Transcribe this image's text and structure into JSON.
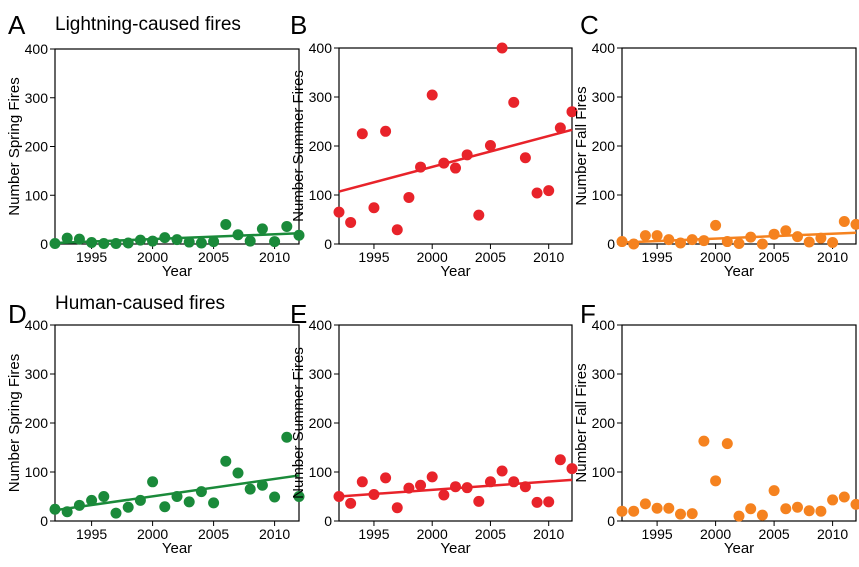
{
  "row_titles": {
    "top": "Lightning-caused fires",
    "bottom": "Human-caused fires"
  },
  "colors": {
    "spring": "#1a8a3a",
    "summer": "#e8232a",
    "fall": "#f5821f",
    "frame": "#000000"
  },
  "chart_data": [
    {
      "panel": "A",
      "type": "scatter",
      "row": "top",
      "xlabel": "Year",
      "ylabel": "Number Spring Fires",
      "xlim": [
        1992,
        2012
      ],
      "ylim": [
        0,
        400
      ],
      "xticks": [
        1995,
        2000,
        2005,
        2010
      ],
      "yticks": [
        0,
        100,
        200,
        300,
        400
      ],
      "grid": false,
      "color_key": "spring",
      "x": [
        1992,
        1993,
        1994,
        1995,
        1996,
        1997,
        1998,
        1999,
        2000,
        2001,
        2002,
        2003,
        2004,
        2005,
        2006,
        2007,
        2008,
        2009,
        2010,
        2011,
        2012
      ],
      "y": [
        1,
        12,
        10,
        3,
        1,
        1,
        2,
        8,
        6,
        13,
        9,
        4,
        2,
        5,
        40,
        19,
        6,
        31,
        5,
        36,
        18
      ],
      "trend": [
        2,
        22
      ]
    },
    {
      "panel": "B",
      "type": "scatter",
      "row": "top",
      "xlabel": "Year",
      "ylabel": "Number Summer Fires",
      "xlim": [
        1992,
        2012
      ],
      "ylim": [
        0,
        400
      ],
      "xticks": [
        1995,
        2000,
        2005,
        2010
      ],
      "yticks": [
        0,
        100,
        200,
        300,
        400
      ],
      "grid": false,
      "color_key": "summer",
      "x": [
        1992,
        1993,
        1994,
        1995,
        1996,
        1997,
        1998,
        1999,
        2000,
        2001,
        2002,
        2003,
        2004,
        2005,
        2006,
        2007,
        2008,
        2009,
        2010,
        2011,
        2012
      ],
      "y": [
        65,
        44,
        225,
        74,
        230,
        29,
        95,
        157,
        304,
        165,
        155,
        182,
        59,
        201,
        400,
        289,
        176,
        104,
        109,
        237,
        270
      ],
      "trend": [
        107,
        233
      ]
    },
    {
      "panel": "C",
      "type": "scatter",
      "row": "top",
      "xlabel": "Year",
      "ylabel": "Number Fall Fires",
      "xlim": [
        1992,
        2012
      ],
      "ylim": [
        0,
        400
      ],
      "xticks": [
        1995,
        2000,
        2005,
        2010
      ],
      "yticks": [
        0,
        100,
        200,
        300,
        400
      ],
      "grid": false,
      "color_key": "fall",
      "x": [
        1992,
        1993,
        1994,
        1995,
        1996,
        1997,
        1998,
        1999,
        2000,
        2001,
        2002,
        2003,
        2004,
        2005,
        2006,
        2007,
        2008,
        2009,
        2010,
        2011,
        2012
      ],
      "y": [
        5,
        0,
        17,
        17,
        9,
        2,
        9,
        7,
        38,
        5,
        1,
        14,
        0,
        20,
        27,
        15,
        4,
        12,
        3,
        46,
        40
      ],
      "trend": [
        3,
        23
      ]
    },
    {
      "panel": "D",
      "type": "scatter",
      "row": "bottom",
      "xlabel": "Year",
      "ylabel": "Number Spring Fires",
      "xlim": [
        1992,
        2012
      ],
      "ylim": [
        0,
        400
      ],
      "xticks": [
        1995,
        2000,
        2005,
        2010
      ],
      "yticks": [
        0,
        100,
        200,
        300,
        400
      ],
      "grid": false,
      "color_key": "spring",
      "x": [
        1992,
        1993,
        1994,
        1995,
        1996,
        1997,
        1998,
        1999,
        2000,
        2001,
        2002,
        2003,
        2004,
        2005,
        2006,
        2007,
        2008,
        2009,
        2010,
        2011,
        2012
      ],
      "y": [
        24,
        19,
        32,
        42,
        50,
        16,
        28,
        42,
        80,
        29,
        50,
        39,
        60,
        37,
        122,
        98,
        65,
        73,
        49,
        171,
        50
      ],
      "trend": [
        22,
        93
      ]
    },
    {
      "panel": "E",
      "type": "scatter",
      "row": "bottom",
      "xlabel": "Year",
      "ylabel": "Number Summer Fires",
      "xlim": [
        1992,
        2012
      ],
      "ylim": [
        0,
        400
      ],
      "xticks": [
        1995,
        2000,
        2005,
        2010
      ],
      "yticks": [
        0,
        100,
        200,
        300,
        400
      ],
      "grid": false,
      "color_key": "summer",
      "x": [
        1992,
        1993,
        1994,
        1995,
        1996,
        1997,
        1998,
        1999,
        2000,
        2001,
        2002,
        2003,
        2004,
        2005,
        2006,
        2007,
        2008,
        2009,
        2010,
        2011,
        2012
      ],
      "y": [
        50,
        36,
        80,
        54,
        88,
        27,
        67,
        73,
        90,
        53,
        70,
        68,
        40,
        80,
        102,
        80,
        70,
        38,
        39,
        125,
        107
      ],
      "trend": [
        50,
        84
      ]
    },
    {
      "panel": "F",
      "type": "scatter",
      "row": "bottom",
      "xlabel": "Year",
      "ylabel": "Number Fall Fires",
      "xlim": [
        1992,
        2012
      ],
      "ylim": [
        0,
        400
      ],
      "xticks": [
        1995,
        2000,
        2005,
        2010
      ],
      "yticks": [
        0,
        100,
        200,
        300,
        400
      ],
      "grid": false,
      "color_key": "fall",
      "x": [
        1992,
        1993,
        1994,
        1995,
        1996,
        1997,
        1998,
        1999,
        2000,
        2001,
        2002,
        2003,
        2004,
        2005,
        2006,
        2007,
        2008,
        2009,
        2010,
        2011,
        2012
      ],
      "y": [
        20,
        20,
        35,
        26,
        26,
        14,
        15,
        163,
        82,
        158,
        10,
        25,
        12,
        62,
        25,
        28,
        21,
        20,
        43,
        49,
        34
      ],
      "trend": null
    }
  ]
}
